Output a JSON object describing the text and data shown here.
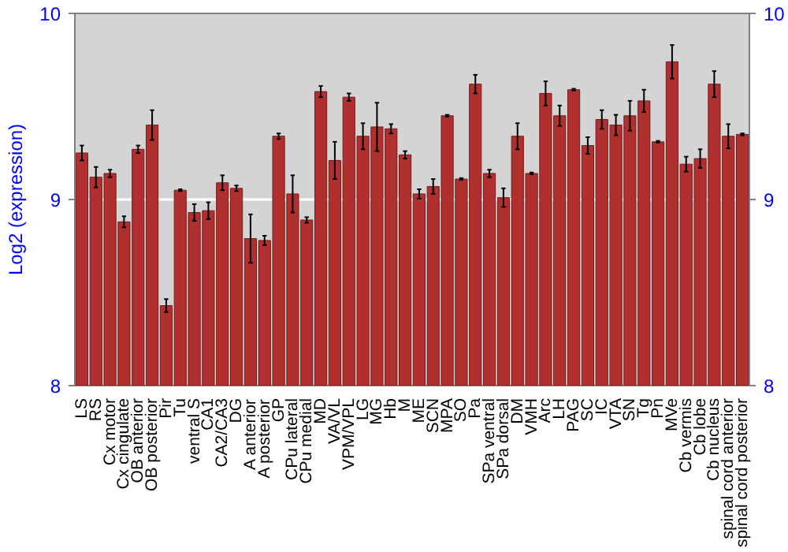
{
  "chart_data": {
    "type": "bar",
    "ylabel": "Log2 (expression)",
    "categories": [
      "LS",
      "RS",
      "Cx motor",
      "Cx cingulate",
      "OB anterior",
      "OB posterior",
      "Pir",
      "Tu",
      "ventral S",
      "CA1",
      "CA2/CA3",
      "DG",
      "A anterior",
      "A posterior",
      "GP",
      "CPu lateral",
      "CPu medial",
      "MD",
      "VA/VL",
      "VPM/VPL",
      "LG",
      "MG",
      "Hb",
      "M",
      "ME",
      "SCN",
      "MPA",
      "SO",
      "Pa",
      "SPa ventral",
      "SPa dorsal",
      "DM",
      "VMH",
      "Arc",
      "LH",
      "PAG",
      "SC",
      "IC",
      "VTA",
      "SN",
      "Tg",
      "Pn",
      "MVe",
      "Cb vermis",
      "Cb lobe",
      "Cb nucleus",
      "spinal cord anterior",
      "spinal cord posterior"
    ],
    "values": [
      9.25,
      9.12,
      9.14,
      8.88,
      9.27,
      9.4,
      8.43,
      9.05,
      8.93,
      8.94,
      9.09,
      9.06,
      8.79,
      8.78,
      9.34,
      9.03,
      8.89,
      9.58,
      9.21,
      9.55,
      9.34,
      9.39,
      9.38,
      9.24,
      9.03,
      9.07,
      9.45,
      9.11,
      9.62,
      9.14,
      9.01,
      9.34,
      9.14,
      9.57,
      9.45,
      9.59,
      9.29,
      9.43,
      9.4,
      9.45,
      9.53,
      9.31,
      9.74,
      9.19,
      9.22,
      9.62,
      9.34,
      9.35
    ],
    "errors": [
      0.04,
      0.055,
      0.02,
      0.03,
      0.02,
      0.08,
      0.035,
      0.005,
      0.045,
      0.045,
      0.04,
      0.015,
      0.13,
      0.025,
      0.015,
      0.1,
      0.015,
      0.03,
      0.1,
      0.02,
      0.07,
      0.13,
      0.025,
      0.02,
      0.025,
      0.04,
      0.005,
      0.005,
      0.05,
      0.02,
      0.05,
      0.07,
      0.005,
      0.065,
      0.055,
      0.005,
      0.045,
      0.05,
      0.055,
      0.08,
      0.06,
      0.005,
      0.09,
      0.04,
      0.05,
      0.07,
      0.065,
      0.005
    ],
    "color": "#b03030",
    "ylim": [
      8,
      10
    ],
    "yticks": [
      8,
      9,
      10
    ],
    "y2lim": [
      8,
      10
    ],
    "y2ticks": [
      8,
      9,
      10
    ],
    "grid": "y"
  }
}
